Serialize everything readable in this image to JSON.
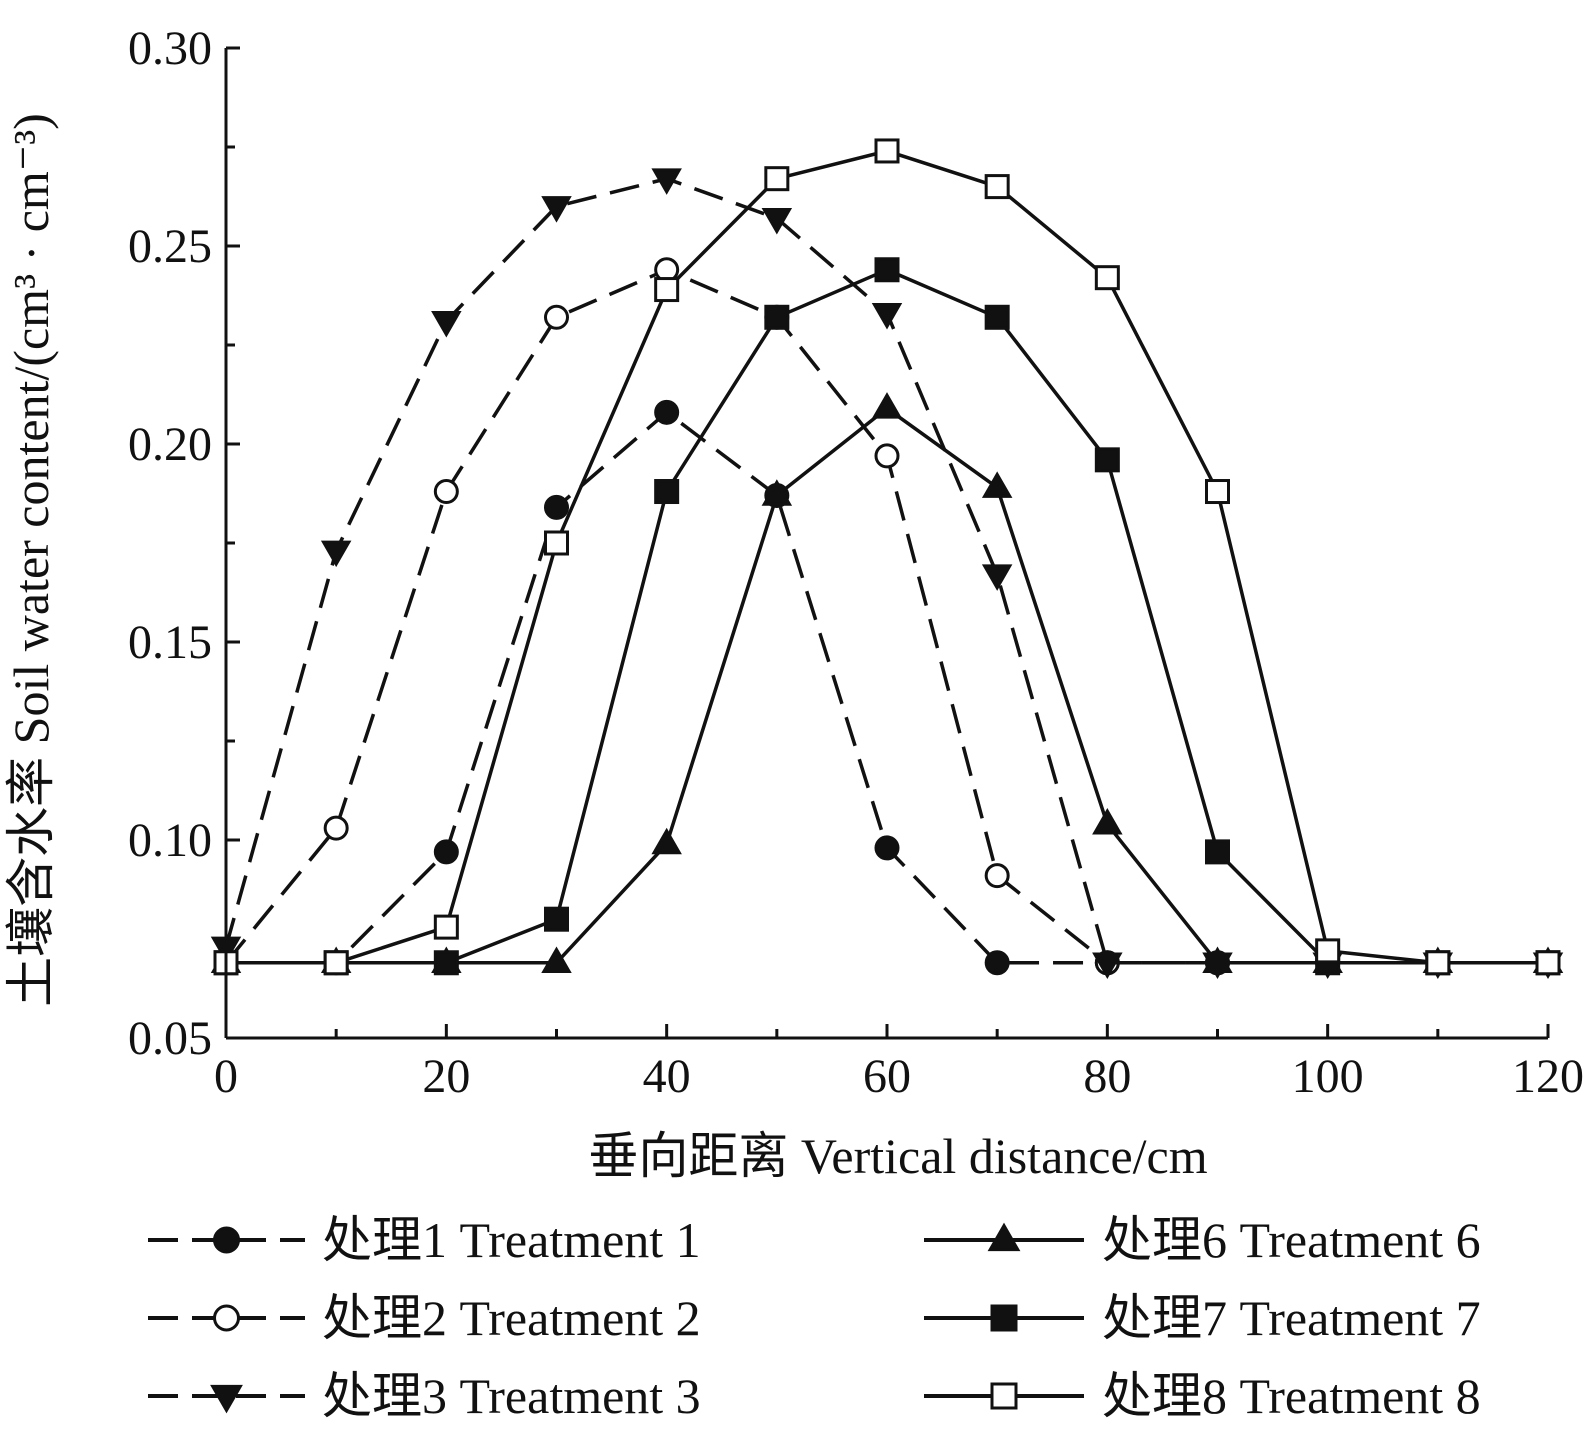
{
  "chart_data": {
    "type": "line",
    "xlabel": "垂向距离 Vertical distance/cm",
    "ylabel": "土壤含水率 Soil water content/(cm³ · cm⁻³)",
    "xlim": [
      0,
      120
    ],
    "ylim": [
      0.05,
      0.3
    ],
    "xticks": [
      0,
      20,
      40,
      60,
      80,
      100,
      120
    ],
    "xtick_labels": [
      "0",
      "20",
      "40",
      "60",
      "80",
      "100",
      "120"
    ],
    "yticks": [
      0.05,
      0.1,
      0.15,
      0.2,
      0.25,
      0.3
    ],
    "ytick_labels": [
      "0.05",
      "0.10",
      "0.15",
      "0.20",
      "0.25",
      "0.30"
    ],
    "grid": false,
    "legend_position": "bottom",
    "series": [
      {
        "name": "处理1 Treatment 1",
        "line_style": "dashed",
        "marker": "filled-circle",
        "x": [
          0,
          10,
          20,
          30,
          40,
          50,
          60,
          70,
          80,
          90,
          100,
          110,
          120
        ],
        "y": [
          0.069,
          0.069,
          0.097,
          0.184,
          0.208,
          0.187,
          0.098,
          0.069,
          0.069,
          0.069,
          0.069,
          0.069,
          0.069
        ]
      },
      {
        "name": "处理2 Treatment 2",
        "line_style": "dashed",
        "marker": "open-circle",
        "x": [
          0,
          10,
          20,
          30,
          40,
          50,
          60,
          70,
          80,
          90,
          100,
          110,
          120
        ],
        "y": [
          0.069,
          0.103,
          0.188,
          0.232,
          0.244,
          0.232,
          0.197,
          0.091,
          0.069,
          0.069,
          0.069,
          0.069,
          0.069
        ]
      },
      {
        "name": "处理3 Treatment 3",
        "line_style": "dashed",
        "marker": "filled-triangle-down",
        "x": [
          0,
          10,
          20,
          30,
          40,
          50,
          60,
          70,
          80,
          90,
          100,
          110,
          120
        ],
        "y": [
          0.073,
          0.173,
          0.231,
          0.26,
          0.267,
          0.257,
          0.233,
          0.167,
          0.069,
          0.069,
          0.069,
          0.069,
          0.069
        ]
      },
      {
        "name": "处理6 Treatment 6",
        "line_style": "solid",
        "marker": "filled-triangle-up",
        "x": [
          0,
          10,
          20,
          30,
          40,
          50,
          60,
          70,
          80,
          90,
          100,
          110,
          120
        ],
        "y": [
          0.069,
          0.069,
          0.069,
          0.069,
          0.099,
          0.187,
          0.209,
          0.189,
          0.104,
          0.069,
          0.069,
          0.069,
          0.069
        ]
      },
      {
        "name": "处理7 Treatment 7",
        "line_style": "solid",
        "marker": "filled-square",
        "x": [
          0,
          10,
          20,
          30,
          40,
          50,
          60,
          70,
          80,
          90,
          100,
          110,
          120
        ],
        "y": [
          0.069,
          0.069,
          0.069,
          0.08,
          0.188,
          0.232,
          0.244,
          0.232,
          0.196,
          0.097,
          0.069,
          0.069,
          0.069
        ]
      },
      {
        "name": "处理8 Treatment 8",
        "line_style": "solid",
        "marker": "open-square",
        "x": [
          0,
          10,
          20,
          30,
          40,
          50,
          60,
          70,
          80,
          90,
          100,
          110,
          120
        ],
        "y": [
          0.069,
          0.069,
          0.078,
          0.175,
          0.239,
          0.267,
          0.274,
          0.265,
          0.242,
          0.188,
          0.072,
          0.069,
          0.069
        ]
      }
    ]
  }
}
